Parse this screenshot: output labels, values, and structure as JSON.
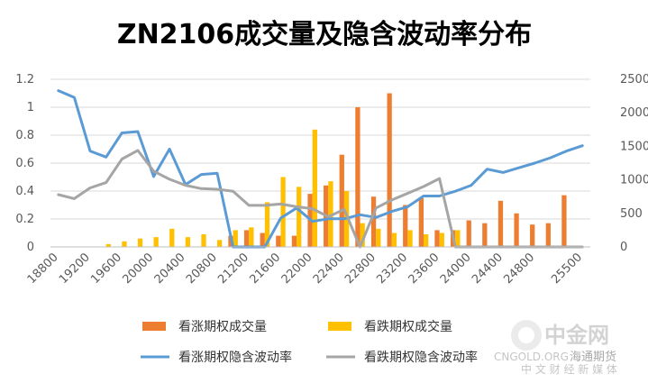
{
  "chart_data": {
    "type": "bar",
    "title": "ZN2106成交量及隐含波动率分布",
    "x": [
      18800,
      19000,
      19200,
      19400,
      19600,
      19800,
      20000,
      20200,
      20400,
      20600,
      20800,
      21000,
      21200,
      21400,
      21600,
      21800,
      22000,
      22200,
      22400,
      22600,
      22800,
      23000,
      23200,
      23400,
      23600,
      23800,
      24000,
      24200,
      24400,
      24600,
      24800,
      25000,
      25200,
      25500
    ],
    "x_tick_labels": [
      "18800",
      "19200",
      "19600",
      "20000",
      "20400",
      "20800",
      "21200",
      "21600",
      "22000",
      "22400",
      "22800",
      "23200",
      "23600",
      "24000",
      "24400",
      "24800",
      "25500"
    ],
    "y_left": {
      "min": 0,
      "max": 1.2,
      "step": 0.2,
      "tick_labels": [
        "0",
        "0.2",
        "0.4",
        "0.6",
        "0.8",
        "1",
        "1.2"
      ]
    },
    "y_right": {
      "min": 0,
      "max": 2500,
      "step": 500,
      "tick_labels": [
        "0",
        "500",
        "1000",
        "1500",
        "2000",
        "2500"
      ]
    },
    "series": [
      {
        "name": "看涨期权成交量",
        "type": "bar",
        "axis": "left",
        "color": "#ED7D31",
        "values": [
          0,
          0,
          0,
          0,
          0,
          0,
          0,
          0,
          0,
          0,
          0,
          0.08,
          0.12,
          0.1,
          0.08,
          0.08,
          0.38,
          0.44,
          0.66,
          1.0,
          0.36,
          1.1,
          0.3,
          0.35,
          0.12,
          0.12,
          0.19,
          0.17,
          0.33,
          0.24,
          0.16,
          0.17,
          0.37,
          0
        ]
      },
      {
        "name": "看跌期权成交量",
        "type": "bar",
        "axis": "left",
        "color": "#FFC000",
        "values": [
          0,
          0,
          0,
          0.02,
          0.04,
          0.06,
          0.07,
          0.13,
          0.07,
          0.09,
          0.05,
          0.12,
          0.14,
          0.32,
          0.5,
          0.43,
          0.84,
          0.47,
          0.4,
          0.17,
          0.13,
          0.1,
          0.12,
          0.09,
          0.1,
          0.12,
          0,
          0,
          0,
          0,
          0,
          0,
          0,
          0
        ]
      },
      {
        "name": "看涨期权隐含波动率",
        "type": "line",
        "axis": "right",
        "color": "#5B9BD5",
        "values": [
          2330,
          2230,
          1430,
          1340,
          1700,
          1720,
          1050,
          1460,
          930,
          1080,
          1100,
          0,
          0,
          0,
          430,
          580,
          380,
          420,
          420,
          480,
          440,
          530,
          600,
          760,
          760,
          830,
          920,
          1160,
          1110,
          1180,
          1250,
          1330,
          1430,
          1510
        ]
      },
      {
        "name": "看跌期权隐含波动率",
        "type": "line",
        "axis": "right",
        "color": "#A5A5A5",
        "values": [
          780,
          720,
          880,
          960,
          1310,
          1440,
          1130,
          1010,
          920,
          870,
          860,
          830,
          620,
          620,
          640,
          600,
          570,
          450,
          560,
          0,
          580,
          700,
          800,
          900,
          1020,
          0,
          0,
          0,
          0,
          0,
          0,
          0,
          0,
          0
        ]
      }
    ]
  },
  "watermark": {
    "logo_text": "中金网",
    "sub_text": "中 文 财 经 新 媒 体",
    "tag_text": "CNGOLD.ORG",
    "account_text": "海通期货"
  }
}
